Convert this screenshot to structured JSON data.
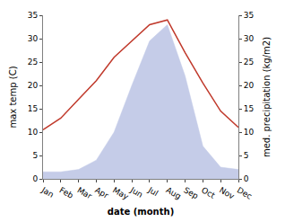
{
  "chart_data": {
    "type": "line",
    "categories": [
      "Jan",
      "Feb",
      "Mar",
      "Apr",
      "May",
      "Jun",
      "Jul",
      "Aug",
      "Sep",
      "Oct",
      "Nov",
      "Dec"
    ],
    "xlabel": "date (month)",
    "ylabel": "max temp (C)",
    "y2label": "med. precipitation (kg/m2)",
    "series": [
      {
        "type": "area",
        "axis": "y2",
        "color": "#c5cce8",
        "values": [
          1.5,
          1.5,
          2.0,
          4.0,
          10.0,
          20.0,
          29.5,
          33.0,
          22.0,
          7.0,
          2.5,
          2.0
        ]
      },
      {
        "type": "line",
        "color": "#c0392b",
        "values": [
          10.5,
          13.0,
          17.0,
          21.0,
          26.0,
          29.5,
          33.0,
          34.0,
          27.0,
          20.5,
          14.5,
          11.0
        ]
      }
    ],
    "ylim": [
      0,
      35
    ],
    "yticks": [
      0,
      5,
      10,
      15,
      20,
      25,
      30,
      35
    ],
    "y2lim": [
      0,
      35
    ],
    "y2ticks": [
      0,
      5,
      10,
      15,
      20,
      25,
      30,
      35
    ],
    "grid": false
  }
}
